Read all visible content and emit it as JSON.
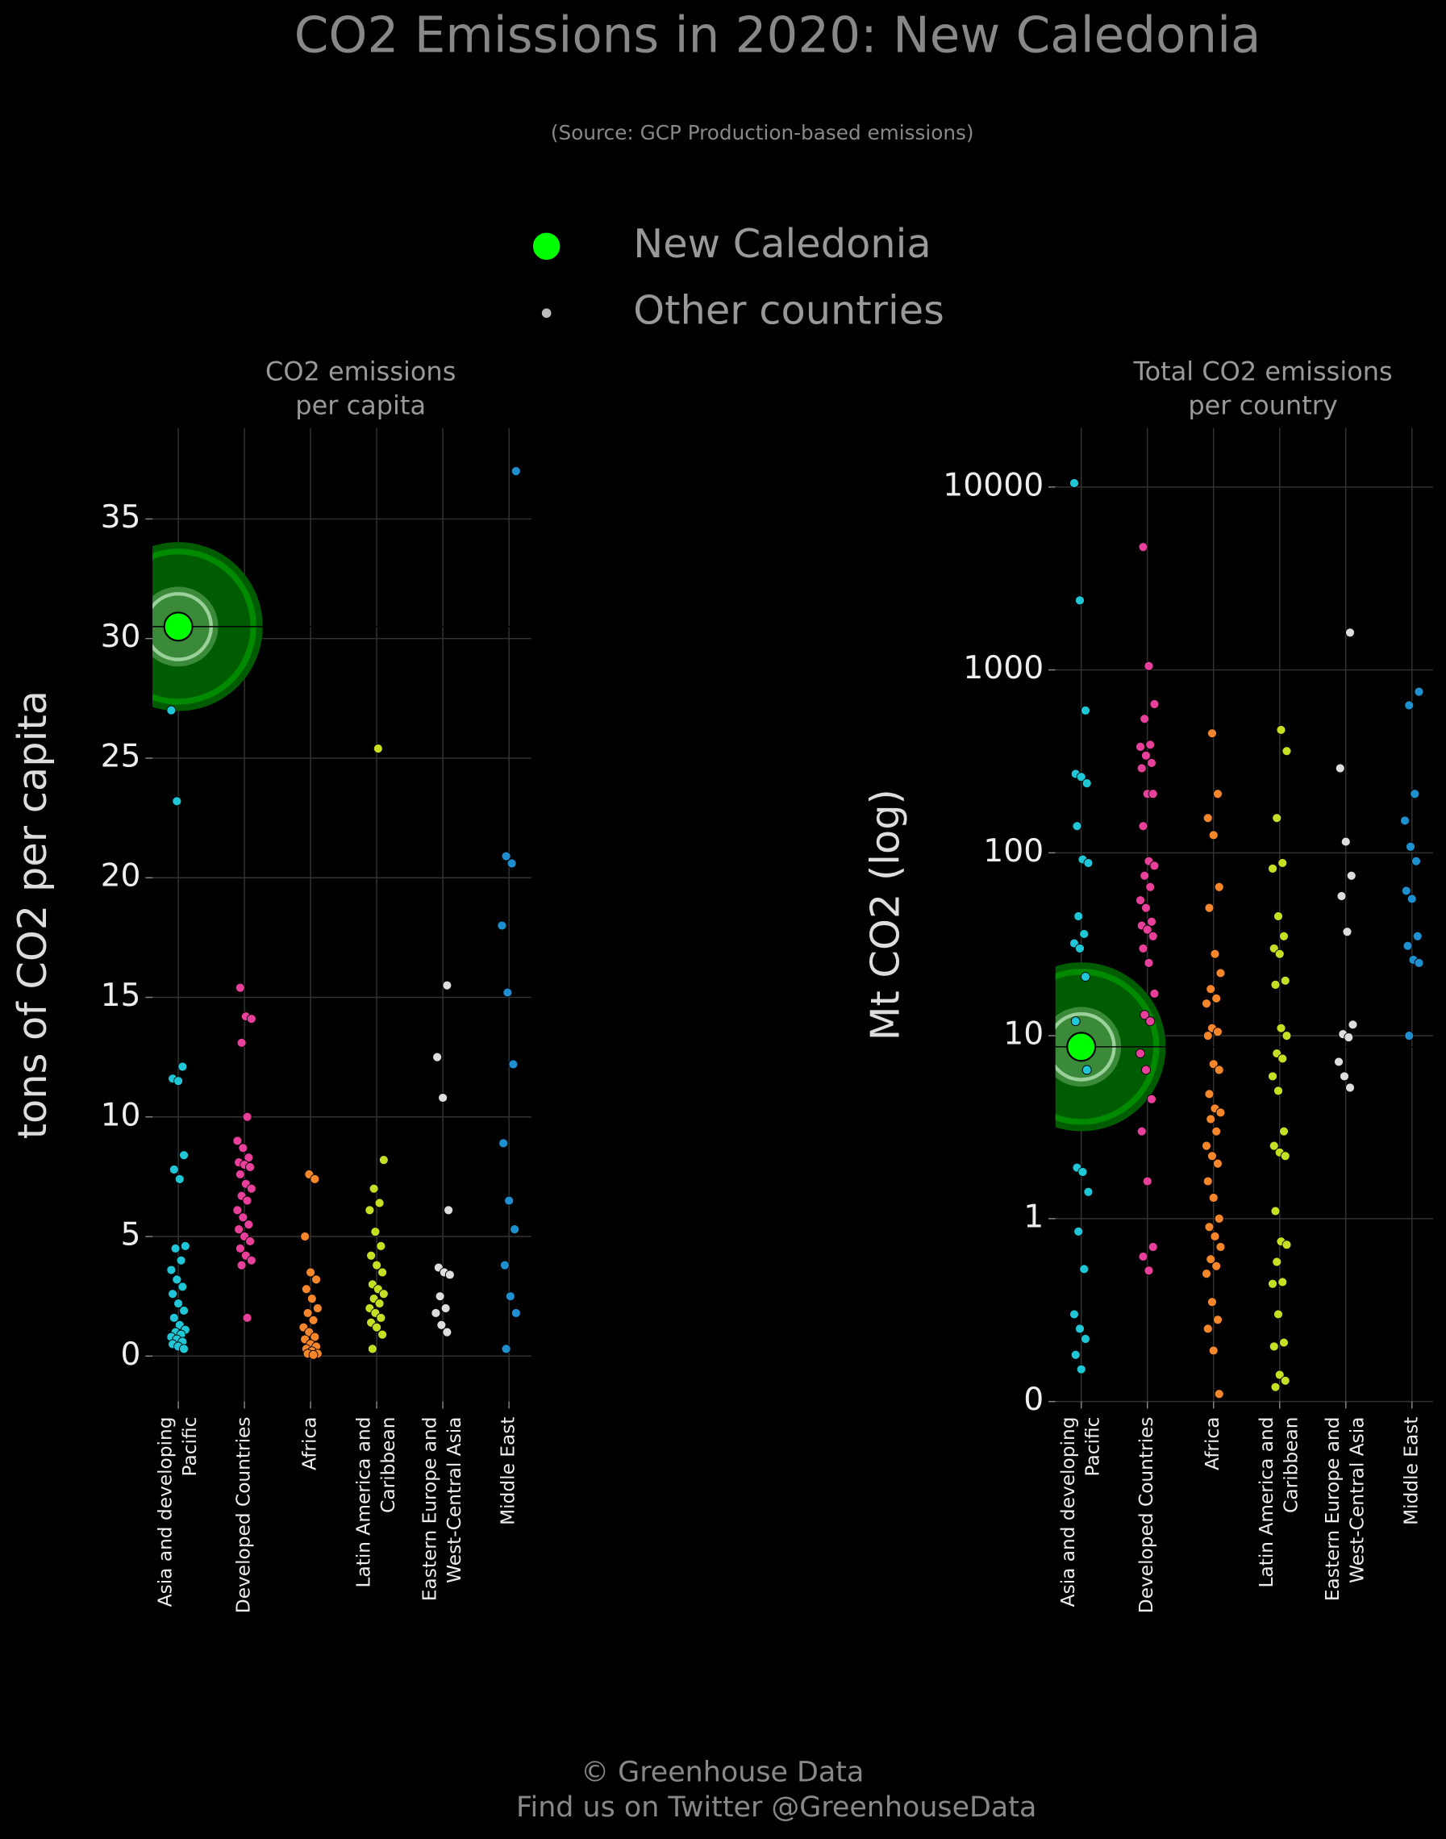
{
  "title": "CO2 Emissions in 2020: New Caledonia",
  "subtitle": "(Source: GCP Production-based emissions)",
  "legend": [
    {
      "name": "New Caledonia",
      "color": "#00ff00"
    },
    {
      "name": "Other countries",
      "color": "#bbbbbb"
    }
  ],
  "footer": [
    "© Greenhouse Data",
    "Find us on Twitter @GreenhouseData"
  ],
  "chart_data": [
    {
      "type": "strip",
      "title": [
        "CO2 emissions",
        "per capita"
      ],
      "ylabel": "tons of CO2 per capita",
      "log": false,
      "grid": true,
      "categories": [
        [
          "Asia and developing",
          "Pacific"
        ],
        [
          "Developed Countries"
        ],
        [
          "Africa"
        ],
        [
          "Latin America and",
          "Caribbean"
        ],
        [
          "Eastern Europe and",
          "West-Central Asia"
        ],
        [
          "Middle East"
        ]
      ],
      "colors": [
        "#1fc6d6",
        "#e8409a",
        "#f5862a",
        "#c6df22",
        "#dddddd",
        "#1e90d0"
      ],
      "groups": [
        [
          27,
          23.2,
          12.1,
          11.6,
          11.5,
          8.4,
          7.8,
          7.4,
          4.6,
          4.5,
          4.0,
          3.6,
          3.2,
          2.9,
          2.6,
          2.2,
          1.9,
          1.6,
          1.3,
          1.1,
          1.0,
          0.9,
          0.8,
          0.7,
          0.6,
          0.5,
          0.4,
          0.3
        ],
        [
          15.4,
          14.2,
          14.1,
          13.1,
          10.0,
          9.0,
          8.7,
          8.3,
          8.1,
          8.0,
          7.9,
          7.6,
          7.2,
          7.0,
          6.7,
          6.5,
          6.1,
          5.8,
          5.5,
          5.3,
          5.0,
          4.8,
          4.5,
          4.2,
          4.0,
          3.8,
          1.6
        ],
        [
          7.6,
          7.4,
          5.0,
          3.5,
          3.2,
          2.8,
          2.4,
          2.0,
          1.8,
          1.5,
          1.2,
          1.0,
          0.8,
          0.7,
          0.5,
          0.4,
          0.3,
          0.2,
          0.1,
          0.1,
          0.05
        ],
        [
          25.4,
          8.2,
          7.0,
          6.4,
          6.1,
          5.2,
          4.6,
          4.2,
          3.8,
          3.5,
          3.0,
          2.8,
          2.6,
          2.4,
          2.2,
          2.0,
          1.8,
          1.6,
          1.4,
          1.2,
          0.9,
          0.3
        ],
        [
          15.5,
          12.5,
          10.8,
          6.1,
          3.7,
          3.5,
          3.4,
          2.5,
          2.0,
          1.8,
          1.3,
          1.0
        ],
        [
          37.0,
          20.9,
          20.6,
          18.0,
          15.2,
          12.2,
          8.9,
          6.5,
          5.3,
          3.8,
          2.5,
          1.8,
          0.3
        ]
      ],
      "highlight": {
        "category": 0,
        "value": 30.5,
        "color": "#00ff00"
      },
      "ylim": [
        -1.9,
        38.8
      ],
      "yticks": [
        0,
        5,
        10,
        15,
        20,
        25,
        30,
        35
      ]
    },
    {
      "type": "strip",
      "title": [
        "Total CO2 emissions",
        "per country"
      ],
      "ylabel": "Mt CO2 (log)",
      "log": true,
      "grid": true,
      "categories": [
        [
          "Asia and developing",
          "Pacific"
        ],
        [
          "Developed Countries"
        ],
        [
          "Africa"
        ],
        [
          "Latin America and",
          "Caribbean"
        ],
        [
          "Eastern Europe and",
          "West-Central Asia"
        ],
        [
          "Middle East"
        ]
      ],
      "colors": [
        "#1fc6d6",
        "#e8409a",
        "#f5862a",
        "#c6df22",
        "#dddddd",
        "#1e90d0"
      ],
      "groups": [
        [
          10500,
          2400,
          600,
          270,
          260,
          240,
          140,
          92,
          88,
          45,
          36,
          32,
          30,
          21,
          12,
          8,
          6.5,
          1.9,
          1.8,
          1.4,
          0.85,
          0.53,
          0.3,
          0.25,
          0.22,
          0.18,
          0.15
        ],
        [
          4700,
          1050,
          650,
          540,
          390,
          380,
          340,
          310,
          290,
          210,
          210,
          140,
          90,
          85,
          75,
          65,
          55,
          50,
          42,
          40,
          38,
          35,
          30,
          25,
          17,
          13,
          12,
          8,
          6.5,
          4.5,
          3,
          1.6,
          0.7,
          0.62,
          0.52
        ],
        [
          450,
          210,
          155,
          125,
          65,
          50,
          28,
          22,
          18,
          16,
          15,
          11,
          10.5,
          10,
          7,
          6.5,
          4.8,
          4,
          3.8,
          3.5,
          3,
          2.5,
          2.2,
          2,
          1.6,
          1.3,
          1.0,
          0.9,
          0.8,
          0.7,
          0.6,
          0.55,
          0.5,
          0.35,
          0.28,
          0.25,
          0.19,
          0.11
        ],
        [
          470,
          360,
          155,
          88,
          82,
          45,
          35,
          30,
          28,
          20,
          19,
          11,
          10,
          8,
          7.5,
          6,
          5,
          3,
          2.5,
          2.3,
          2.2,
          1.1,
          0.75,
          0.72,
          0.58,
          0.45,
          0.44,
          0.3,
          0.21,
          0.2,
          0.14,
          0.13,
          0.12
        ],
        [
          1600,
          290,
          115,
          75,
          58,
          37,
          11.5,
          10.2,
          9.8,
          7.2,
          6,
          5.2
        ],
        [
          760,
          640,
          210,
          150,
          108,
          90,
          62,
          56,
          35,
          31,
          26,
          25,
          10
        ]
      ],
      "highlight": {
        "category": 0,
        "value": 8.7,
        "color": "#00ff00"
      },
      "ylim": [
        0.1,
        21000
      ],
      "yticks": [
        {
          "value": 0.1,
          "label": "0"
        },
        1,
        10,
        100,
        1000,
        10000
      ]
    }
  ]
}
